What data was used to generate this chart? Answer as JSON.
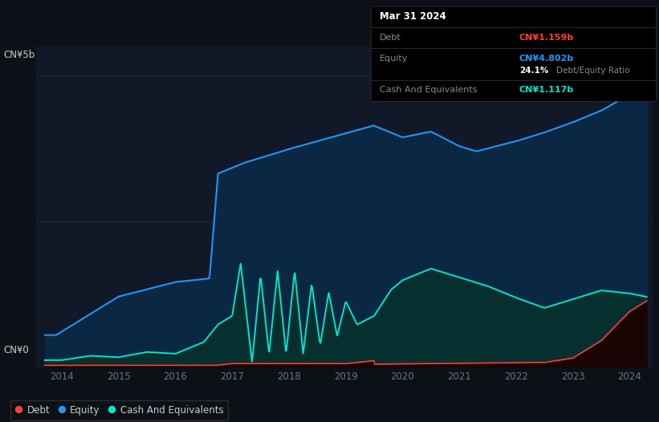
{
  "bg_color": "#0d1117",
  "plot_bg_color": "#111827",
  "grid_color": "#1e2535",
  "equity_color": "#2196f3",
  "debt_color": "#f44336",
  "cash_color": "#00e5cc",
  "equity_fill": "#0a2744",
  "cash_fill": "#063030",
  "debt_fill": "#3a0a0a",
  "x_ticks": [
    2014,
    2015,
    2016,
    2017,
    2018,
    2019,
    2020,
    2021,
    2022,
    2023,
    2024
  ],
  "xlim": [
    2013.55,
    2024.4
  ],
  "ylim": [
    0.0,
    5.5
  ],
  "info_box": {
    "date": "Mar 31 2024",
    "debt_label": "Debt",
    "debt_value": "CN¥1.159b",
    "debt_color": "#f44336",
    "equity_label": "Equity",
    "equity_value": "CN¥4.802b",
    "equity_color": "#2196f3",
    "ratio_bold": "24.1%",
    "ratio_text": "Debt/Equity Ratio",
    "cash_label": "Cash And Equivalents",
    "cash_value": "CN¥1.117b",
    "cash_color": "#00e5cc"
  },
  "legend": [
    {
      "label": "Debt",
      "color": "#f44336"
    },
    {
      "label": "Equity",
      "color": "#2196f3"
    },
    {
      "label": "Cash And Equivalents",
      "color": "#00e5cc"
    }
  ]
}
